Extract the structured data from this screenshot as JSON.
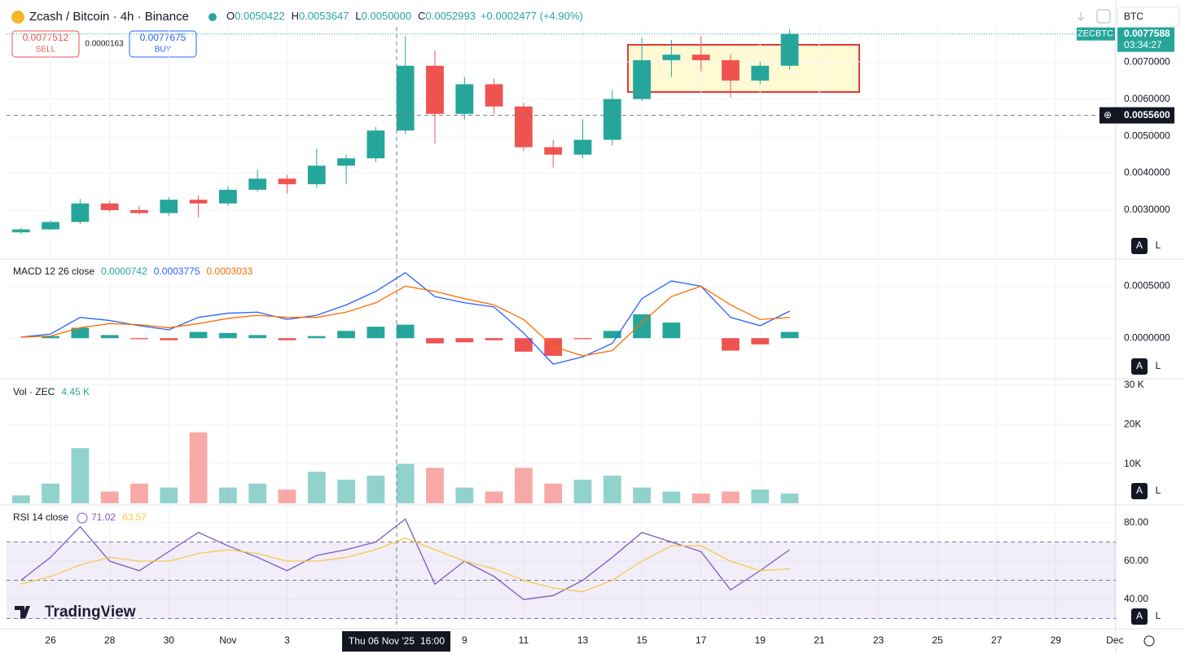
{
  "header": {
    "symbol": "Zcash / Bitcoin · 4h · Binance",
    "ohlc": [
      {
        "key": "O",
        "value": "0.0050422"
      },
      {
        "key": "H",
        "value": "0.0053647"
      },
      {
        "key": "L",
        "value": "0.0050000"
      },
      {
        "key": "C",
        "value": "0.0052993"
      }
    ],
    "change": "+0.0002477 (+4.90%)",
    "currency": "BTC"
  },
  "trade": {
    "sell_price": "0.0077512",
    "sell": "SELL",
    "spread": "0.0000163",
    "buy_price": "0.0077675",
    "buy": "BUY"
  },
  "x_axis": {
    "xlim": [
      24.51,
      62.03
    ],
    "xticks": [
      {
        "value": 26,
        "label": "26"
      },
      {
        "value": 28,
        "label": "28"
      },
      {
        "value": 30,
        "label": "30"
      },
      {
        "value": 32,
        "label": "Nov"
      },
      {
        "value": 34,
        "label": "3"
      },
      {
        "value": 40,
        "label": "9"
      },
      {
        "value": 42,
        "label": "11"
      },
      {
        "value": 44,
        "label": "13"
      },
      {
        "value": 46,
        "label": "15"
      },
      {
        "value": 48,
        "label": "17"
      },
      {
        "value": 50,
        "label": "19"
      },
      {
        "value": 52,
        "label": "21"
      },
      {
        "value": 54,
        "label": "23"
      },
      {
        "value": 56,
        "label": "25"
      },
      {
        "value": 58,
        "label": "27"
      },
      {
        "value": 60,
        "label": "29"
      },
      {
        "value": 62,
        "label": "Dec"
      }
    ]
  },
  "crosshair": {
    "price": {
      "value": 0.00556,
      "label": "0.0055600"
    },
    "date": "Thu 06 Nov '25",
    "time": "16:00"
  },
  "buttons": [
    "A",
    "L"
  ],
  "branding": "TradingView",
  "chart_data": [
    {
      "type": "candlestick",
      "up_color": "#26a69a",
      "down_color": "#ef5350",
      "x": [
        25,
        26,
        27,
        28,
        29,
        30,
        31,
        32,
        33,
        34,
        35,
        36,
        37,
        38,
        39,
        40,
        41,
        42,
        43,
        44,
        45,
        46,
        47,
        48,
        49,
        50,
        51
      ],
      "open": [
        0.0024,
        0.00248,
        0.00268,
        0.00318,
        0.003,
        0.00292,
        0.00328,
        0.00318,
        0.00355,
        0.00385,
        0.0037,
        0.0042,
        0.0044,
        0.00515,
        0.0069,
        0.0056,
        0.0064,
        0.0058,
        0.0047,
        0.0045,
        0.0049,
        0.006,
        0.00705,
        0.0072,
        0.00705,
        0.0065,
        0.0069
      ],
      "high": [
        0.00252,
        0.00272,
        0.0033,
        0.00325,
        0.00312,
        0.00335,
        0.0034,
        0.00365,
        0.0041,
        0.00395,
        0.00465,
        0.0045,
        0.00525,
        0.0077,
        0.0073,
        0.0066,
        0.00655,
        0.0059,
        0.0049,
        0.00545,
        0.00625,
        0.00765,
        0.0076,
        0.0077,
        0.0072,
        0.007,
        0.0079
      ],
      "low": [
        0.00235,
        0.00246,
        0.00262,
        0.00295,
        0.00288,
        0.00285,
        0.0028,
        0.00312,
        0.0035,
        0.00345,
        0.0036,
        0.0037,
        0.0043,
        0.00505,
        0.0048,
        0.00545,
        0.0056,
        0.0046,
        0.00415,
        0.0044,
        0.00475,
        0.00595,
        0.0066,
        0.00675,
        0.00605,
        0.0064,
        0.0068
      ],
      "close": [
        0.00248,
        0.00268,
        0.00318,
        0.003,
        0.00292,
        0.00328,
        0.00318,
        0.00355,
        0.00385,
        0.0037,
        0.0042,
        0.0044,
        0.00515,
        0.0069,
        0.0056,
        0.0064,
        0.0058,
        0.0047,
        0.0045,
        0.0049,
        0.006,
        0.00705,
        0.0072,
        0.00705,
        0.0065,
        0.0069,
        0.00776
      ],
      "ylim": [
        0.00168,
        0.00795
      ],
      "yticks": [
        {
          "value": 0.003,
          "label": "0.0030000"
        },
        {
          "value": 0.004,
          "label": "0.0040000"
        },
        {
          "value": 0.005,
          "label": "0.0050000"
        },
        {
          "value": 0.006,
          "label": "0.0060000"
        },
        {
          "value": 0.007,
          "label": "0.0070000"
        }
      ],
      "last_price": {
        "value": 0.0077588,
        "label": "0.0077588",
        "symbol": "ZECBTC",
        "countdown": "03:34:27"
      },
      "grid": true
    },
    {
      "type": "macd",
      "title": "MACD 12 26 close",
      "legend_values": [
        {
          "label": "0.0000742",
          "color": "#26a69a"
        },
        {
          "label": "0.0003775",
          "color": "#2962ff"
        },
        {
          "label": "0.0003033",
          "color": "#ff6d00"
        }
      ],
      "x": [
        25,
        26,
        27,
        28,
        29,
        30,
        31,
        32,
        33,
        34,
        35,
        36,
        37,
        38,
        39,
        40,
        41,
        42,
        43,
        44,
        45,
        46,
        47,
        48,
        49,
        50,
        51
      ],
      "series": [
        {
          "type": "bar",
          "color": "#26a69a",
          "negative_color": "#ef5350",
          "values": [
            0,
            2e-05,
            0.0001,
            3e-05,
            -1e-05,
            -2e-05,
            6e-05,
            5e-05,
            3e-05,
            -2e-05,
            2e-05,
            7e-05,
            0.00011,
            0.00013,
            -5e-05,
            -4e-05,
            -2e-05,
            -0.00013,
            -0.00017,
            -1e-05,
            7e-05,
            0.00023,
            0.00015,
            0,
            -0.00012,
            -6e-05,
            6e-05
          ]
        },
        {
          "type": "line",
          "color": "#2962ff",
          "values": [
            1e-05,
            4e-05,
            0.0002,
            0.00017,
            0.00012,
            8e-05,
            0.0002,
            0.00024,
            0.00025,
            0.00018,
            0.00022,
            0.00032,
            0.00045,
            0.00063,
            0.0004,
            0.00034,
            0.0003,
            5e-05,
            -0.00025,
            -0.00018,
            -5e-05,
            0.00038,
            0.00055,
            0.0005,
            0.0002,
            0.00012,
            0.00026
          ]
        },
        {
          "type": "line",
          "color": "#ff6d00",
          "values": [
            1e-05,
            2e-05,
            0.0001,
            0.00014,
            0.00013,
            0.0001,
            0.00014,
            0.00019,
            0.00022,
            0.0002,
            0.0002,
            0.00025,
            0.00034,
            0.0005,
            0.00045,
            0.00038,
            0.00032,
            0.00018,
            -8e-05,
            -0.00017,
            -0.00012,
            0.00015,
            0.0004,
            0.0005,
            0.00032,
            0.00018,
            0.0002
          ]
        }
      ],
      "ylim": [
        -0.00039,
        0.00073
      ],
      "yticks": [
        {
          "value": 0,
          "label": "0.0000000"
        },
        {
          "value": 0.0005,
          "label": "0.0005000"
        }
      ],
      "grid": true
    },
    {
      "type": "bar",
      "title": "Vol · ZEC",
      "legend_value": "4.45 K",
      "up_color": "#26a69a80",
      "down_color": "#ef535080",
      "x": [
        25,
        26,
        27,
        28,
        29,
        30,
        31,
        32,
        33,
        34,
        35,
        36,
        37,
        38,
        39,
        40,
        41,
        42,
        43,
        44,
        45,
        46,
        47,
        48,
        49,
        50,
        51
      ],
      "values": [
        2000,
        5000,
        14000,
        3000,
        5000,
        4000,
        18000,
        4000,
        5000,
        3500,
        8000,
        6000,
        7000,
        10000,
        9000,
        4000,
        3000,
        9000,
        5000,
        6000,
        7000,
        4000,
        3000,
        2500,
        3000,
        3500,
        2500
      ],
      "ylim": [
        0,
        31600
      ],
      "yticks": [
        {
          "value": 10000,
          "label": "10K"
        },
        {
          "value": 20000,
          "label": "20K"
        },
        {
          "value": 30000,
          "label": "30 K"
        }
      ],
      "grid": true
    },
    {
      "type": "line",
      "title": "RSI 14 close",
      "legend_values": [
        {
          "label": "71.02",
          "color": "#7e57c2"
        },
        {
          "label": "63.57",
          "color": "#f7c948"
        }
      ],
      "x": [
        25,
        26,
        27,
        28,
        29,
        30,
        31,
        32,
        33,
        34,
        35,
        36,
        37,
        38,
        39,
        40,
        41,
        42,
        43,
        44,
        45,
        46,
        47,
        48,
        49,
        50,
        51
      ],
      "series": [
        {
          "color": "#7e57c2",
          "values": [
            50,
            62,
            78,
            60,
            55,
            65,
            75,
            68,
            62,
            55,
            63,
            66,
            70,
            82,
            48,
            60,
            52,
            40,
            42,
            50,
            62,
            75,
            70,
            65,
            45,
            55,
            66
          ]
        },
        {
          "color": "#f7c948",
          "values": [
            48,
            52,
            58,
            62,
            60,
            60,
            64,
            66,
            64,
            60,
            60,
            62,
            66,
            72,
            66,
            60,
            56,
            50,
            46,
            44,
            50,
            60,
            68,
            68,
            60,
            55,
            56
          ]
        }
      ],
      "bands": [
        30,
        50,
        70
      ],
      "band_fill": "#7e57c21a",
      "ylim": [
        24.7,
        88.5
      ],
      "yticks": [
        {
          "value": 40,
          "label": "40.00"
        },
        {
          "value": 60,
          "label": "60.00"
        },
        {
          "value": 80,
          "label": "80.00"
        }
      ],
      "grid": true
    }
  ]
}
